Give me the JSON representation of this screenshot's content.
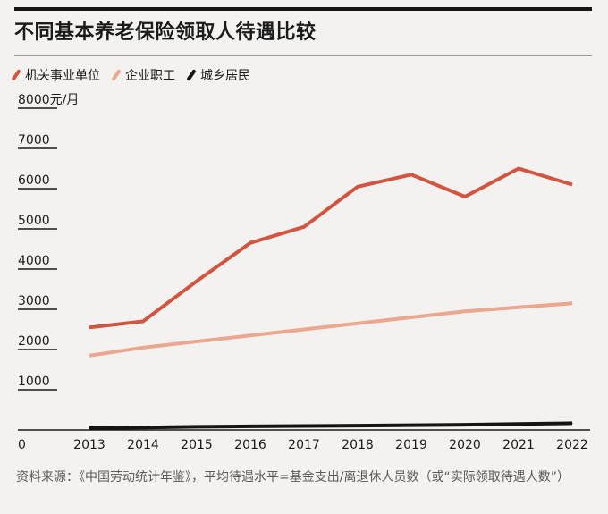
{
  "header": {
    "title": "不同基本养老保险领取人待遇比较"
  },
  "legend": [
    {
      "label": "机关事业单位",
      "color": "#d2553f"
    },
    {
      "label": "企业职工",
      "color": "#eba790"
    },
    {
      "label": "城乡居民",
      "color": "#141414"
    }
  ],
  "chart_data": {
    "type": "line",
    "title": "不同基本养老保险领取人待遇比较",
    "x": [
      "2013",
      "2014",
      "2015",
      "2016",
      "2017",
      "2018",
      "2019",
      "2020",
      "2021",
      "2022"
    ],
    "y_ticks": [
      "0",
      "1000",
      "2000",
      "3000",
      "4000",
      "5000",
      "6000",
      "7000",
      "8000元/月"
    ],
    "ylim": [
      0,
      8000
    ],
    "grid": false,
    "legend_position": "top-left",
    "series": [
      {
        "name": "机关事业单位",
        "color": "#d2553f",
        "values": [
          2550,
          2700,
          3700,
          4650,
          5050,
          6050,
          6350,
          5800,
          6500,
          6100
        ]
      },
      {
        "name": "企业职工",
        "color": "#eba790",
        "values": [
          1850,
          2050,
          2200,
          2350,
          2500,
          2650,
          2800,
          2950,
          3050,
          3150
        ]
      },
      {
        "name": "城乡居民",
        "color": "#141414",
        "values": [
          50,
          60,
          80,
          90,
          100,
          110,
          120,
          130,
          150,
          170
        ]
      }
    ]
  },
  "source": {
    "text": "资料来源：《中国劳动统计年鉴》，平均待遇水平=基金支出/离退休人员数（或“实际领取待遇人数”）"
  }
}
